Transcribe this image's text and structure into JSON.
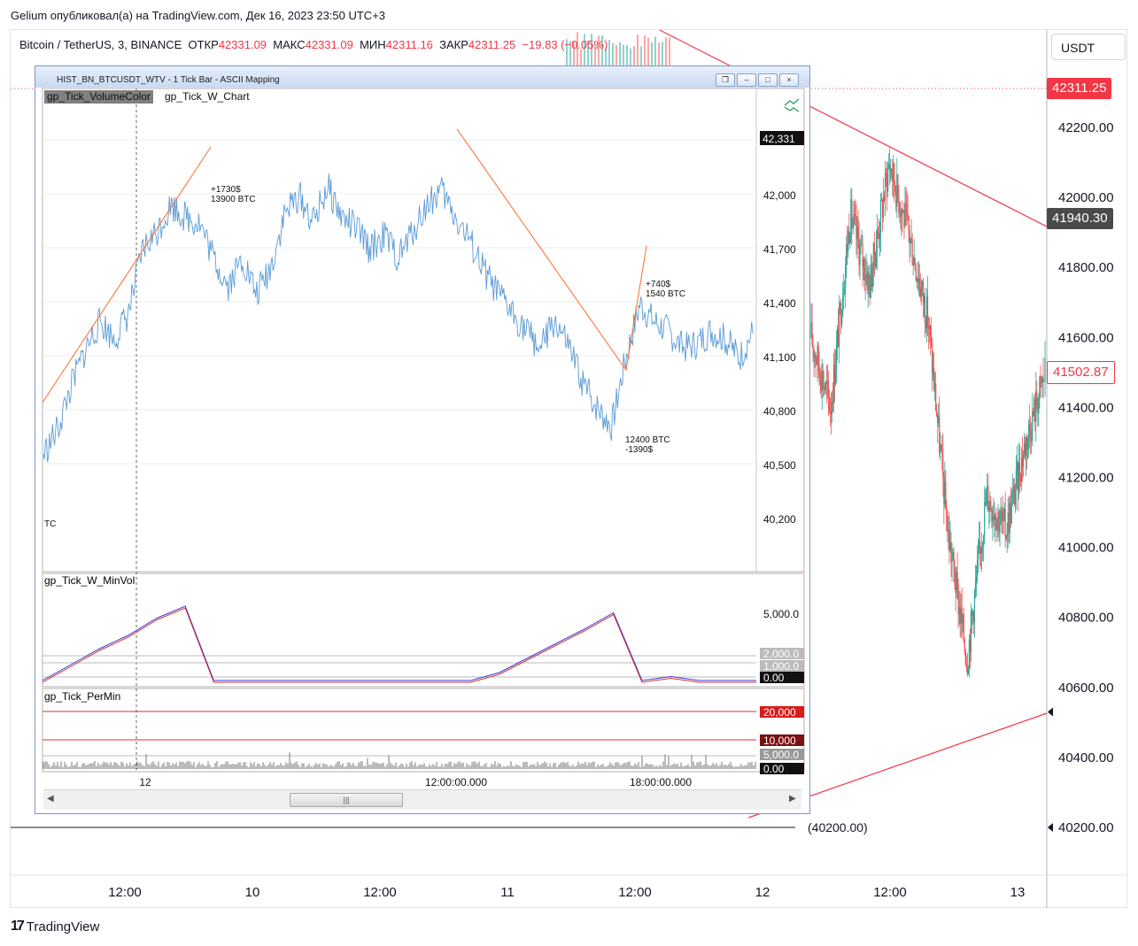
{
  "caption": "Gelium опубликовал(а) на TradingView.com, Дек 16, 2023 23:50 UTC+3",
  "header": {
    "symbol": "Bitcoin / TetherUS, 3, BINANCE",
    "o_label": "ОТКР",
    "o_value": "42331.09",
    "h_label": "МАКС",
    "h_value": "42331.09",
    "l_label": "МИН",
    "l_value": "42311.16",
    "c_label": "ЗАКР",
    "c_value": "42311.25",
    "change": "−19.83 (−0.05%)"
  },
  "currency": "USDT",
  "brand": "TradingView",
  "colors": {
    "up": "#26a69a",
    "down": "#ef5350",
    "line": "#f23645",
    "mini": "#5b9bd5"
  },
  "chart_data": [
    {
      "type": "candlestick",
      "title": "Bitcoin / TetherUS, 3, BINANCE",
      "x_tick_labels": [
        "12:00",
        "10",
        "12:00",
        "11",
        "12:00",
        "12",
        "12:00",
        "13"
      ],
      "y_tick_labels": [
        "42200.00",
        "42000.00",
        "41800.00",
        "41600.00",
        "41400.00",
        "41200.00",
        "41000.00",
        "40800.00",
        "40600.00",
        "40400.00",
        "40200.00"
      ],
      "ylim": [
        40100,
        42350
      ],
      "price_tags": [
        {
          "label": "42311.25",
          "value": 42311.25,
          "color": "#f23645"
        },
        {
          "label": "41940.30",
          "value": 41940.3,
          "color": "#4a4a4a"
        },
        {
          "label": "41502.87",
          "value": 41502.87,
          "color": "outline-red"
        }
      ],
      "annotation": "(40200.00)",
      "visible_price_path": [
        {
          "t": "12 09:00",
          "price": 41600
        },
        {
          "t": "12 10:30",
          "price": 41400
        },
        {
          "t": "12 11:30",
          "price": 41950
        },
        {
          "t": "12 13:30",
          "price": 41750
        },
        {
          "t": "12 15:00",
          "price": 42100
        },
        {
          "t": "12 17:00",
          "price": 41900
        },
        {
          "t": "12 19:00",
          "price": 41650
        },
        {
          "t": "12 21:00",
          "price": 41050
        },
        {
          "t": "12 22:30",
          "price": 40680
        },
        {
          "t": "13 01:00",
          "price": 41150
        },
        {
          "t": "13 03:00",
          "price": 41050
        },
        {
          "t": "13 05:00",
          "price": 41300
        },
        {
          "t": "13 06:00",
          "price": 41500
        }
      ]
    },
    {
      "type": "line",
      "window_title": "HIST_BN_BTCUSDT_WTV - 1 Tick Bar - ASCII Mapping",
      "tabs": [
        "gp_Tick_VolumeColor",
        "gp_Tick_W_Chart"
      ],
      "last_price_tag": "42,331",
      "y_tick_labels": [
        "42,000",
        "41,700",
        "41,400",
        "41,100",
        "40,800",
        "40,500",
        "40,200"
      ],
      "ylim": [
        40000,
        42400
      ],
      "x_tick_labels": [
        "12",
        "12:00:00.000",
        "18:00:00.000"
      ],
      "price_series": [
        40560,
        40700,
        40950,
        41150,
        41300,
        41200,
        41350,
        41700,
        41800,
        41950,
        41880,
        41850,
        41650,
        41500,
        41650,
        41450,
        41600,
        41900,
        42000,
        41850,
        42050,
        41880,
        41820,
        41700,
        41780,
        41650,
        41800,
        41950,
        42030,
        41880,
        41750,
        41580,
        41450,
        41350,
        41250,
        41150,
        41300,
        41150,
        40950,
        40820,
        40720,
        41100,
        41400,
        41300,
        41250,
        41150,
        41180,
        41250,
        41200,
        41100,
        41250
      ],
      "wave_lines": [
        {
          "from_price": 40540,
          "to_price": 41960,
          "label": [
            "+1730$",
            "13900 BTC"
          ]
        },
        {
          "from_price": 42060,
          "to_price": 40720,
          "label": [
            "12400 BTC",
            "-1390$"
          ]
        },
        {
          "from_price": 40720,
          "to_price": 41410,
          "label": [
            "+740$",
            "1540 BTC"
          ]
        }
      ],
      "left_clip_label": "TC"
    },
    {
      "type": "line",
      "title": "gp_Tick_W_MinVol",
      "y_tick_labels": [
        "5,000.0"
      ],
      "tags": [
        "2,000.0",
        "1,000.0",
        "0.00"
      ],
      "series": [
        {
          "name": "",
          "values": [
            0,
            1200,
            2400,
            3400,
            4700,
            5600,
            0,
            0,
            0,
            0,
            0,
            0,
            0,
            0,
            0,
            0,
            600,
            1700,
            2800,
            3900,
            5100,
            0,
            300,
            0,
            0,
            0
          ]
        }
      ]
    },
    {
      "type": "bar",
      "title": "gp_Tick_PerMin",
      "tags": [
        "20,000",
        "10,000",
        "5,000.0",
        "0.00"
      ]
    }
  ]
}
